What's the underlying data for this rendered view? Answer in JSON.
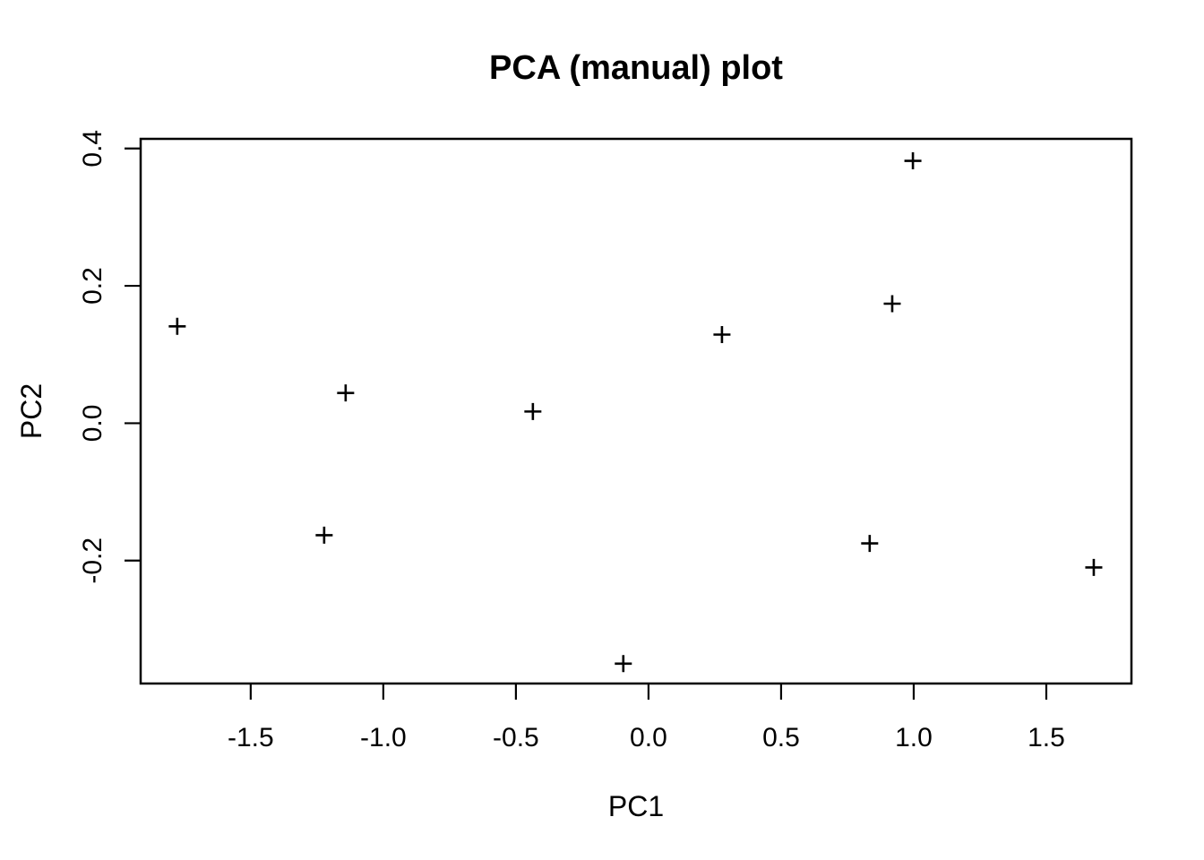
{
  "figure": {
    "background_color": "#ffffff",
    "foreground_color": "#000000"
  },
  "chart_data": {
    "type": "scatter",
    "title": "PCA (manual) plot",
    "xlabel": "PC1",
    "ylabel": "PC2",
    "marker": "plus",
    "marker_color": "#000000",
    "grid": false,
    "legend": "none",
    "xlim": [
      -1.915,
      1.821
    ],
    "ylim": [
      -0.379,
      0.414
    ],
    "x_ticks": [
      {
        "value": -1.5,
        "label": "-1.5"
      },
      {
        "value": -1.0,
        "label": "-1.0"
      },
      {
        "value": -0.5,
        "label": "-0.5"
      },
      {
        "value": 0.0,
        "label": "0.0"
      },
      {
        "value": 0.5,
        "label": "0.5"
      },
      {
        "value": 1.0,
        "label": "1.0"
      },
      {
        "value": 1.5,
        "label": "1.5"
      }
    ],
    "y_ticks": [
      {
        "value": -0.2,
        "label": "-0.2"
      },
      {
        "value": 0.0,
        "label": "0.0"
      },
      {
        "value": 0.2,
        "label": "0.2"
      },
      {
        "value": 0.4,
        "label": "0.4"
      }
    ],
    "points": [
      {
        "x": -1.777,
        "y": 0.141
      },
      {
        "x": -1.223,
        "y": -0.163
      },
      {
        "x": -1.142,
        "y": 0.044
      },
      {
        "x": -0.436,
        "y": 0.017
      },
      {
        "x": -0.095,
        "y": -0.35
      },
      {
        "x": 0.277,
        "y": 0.129
      },
      {
        "x": 0.834,
        "y": -0.175
      },
      {
        "x": 0.919,
        "y": 0.174
      },
      {
        "x": 0.997,
        "y": 0.382
      },
      {
        "x": 1.679,
        "y": -0.21
      }
    ]
  }
}
